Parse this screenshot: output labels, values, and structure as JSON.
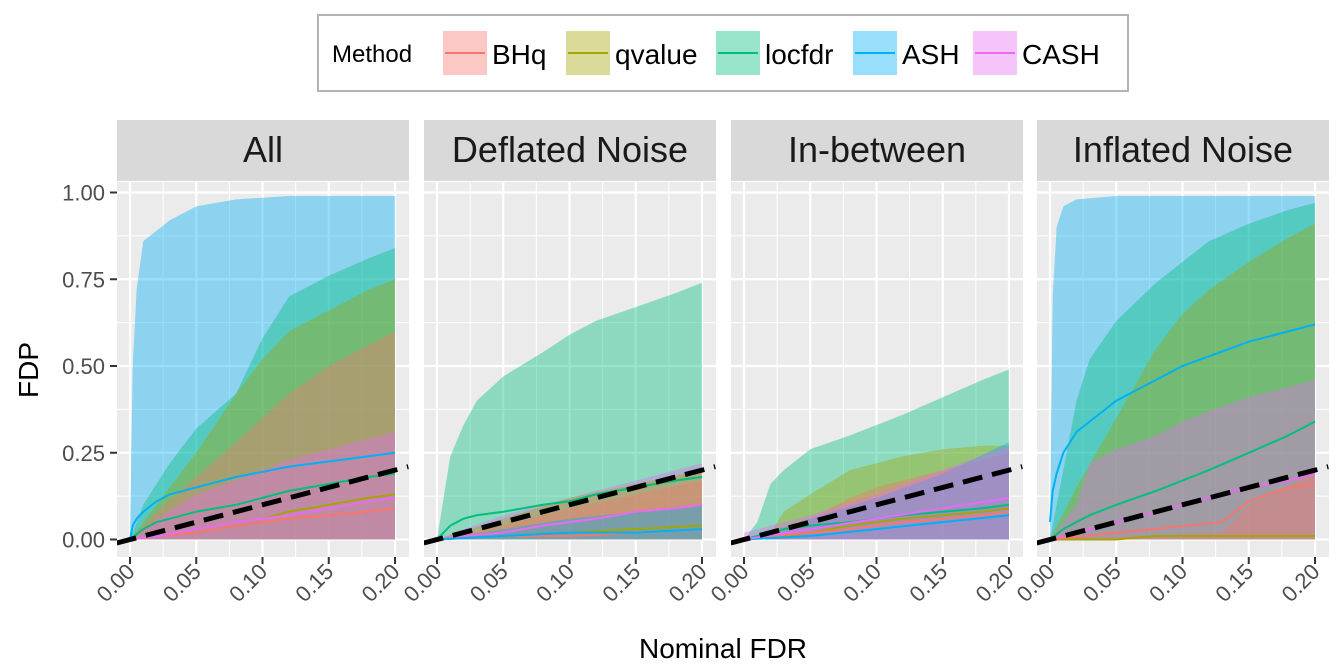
{
  "chart_data": {
    "type": "area",
    "xlabel": "Nominal FDR",
    "ylabel": "FDP",
    "xlim": [
      0,
      0.2
    ],
    "ylim": [
      0,
      1
    ],
    "x_ticks": [
      "0.00",
      "0.05",
      "0.10",
      "0.15",
      "0.20"
    ],
    "y_ticks": [
      "0.00",
      "0.25",
      "0.50",
      "0.75",
      "1.00"
    ],
    "grid": true,
    "legend": {
      "title": "Method",
      "placement": "top",
      "items": [
        {
          "name": "BHq",
          "color": "#F8766D"
        },
        {
          "name": "qvalue",
          "color": "#A3A500"
        },
        {
          "name": "locfdr",
          "color": "#00BF7D"
        },
        {
          "name": "ASH",
          "color": "#00B0F6"
        },
        {
          "name": "CASH",
          "color": "#E76BF3"
        }
      ]
    },
    "reference_line": {
      "style": "dashed",
      "color": "#000000",
      "slope": 1
    },
    "panels": [
      {
        "title": "All",
        "series": [
          {
            "name": "ASH",
            "x": [
              0,
              0.002,
              0.005,
              0.01,
              0.02,
              0.03,
              0.05,
              0.08,
              0.12,
              0.16,
              0.2
            ],
            "lower": [
              0,
              0,
              0,
              0,
              0,
              0,
              0,
              0,
              0,
              0,
              0
            ],
            "upper": [
              0.02,
              0.5,
              0.72,
              0.86,
              0.89,
              0.92,
              0.96,
              0.98,
              0.99,
              0.99,
              0.99
            ],
            "median": [
              0,
              0.04,
              0.06,
              0.08,
              0.11,
              0.13,
              0.15,
              0.18,
              0.21,
              0.23,
              0.25
            ]
          },
          {
            "name": "locfdr",
            "x": [
              0,
              0.01,
              0.02,
              0.03,
              0.05,
              0.08,
              0.1,
              0.12,
              0.15,
              0.18,
              0.2
            ],
            "lower": [
              0,
              0,
              0,
              0,
              0,
              0,
              0,
              0,
              0,
              0,
              0
            ],
            "upper": [
              0,
              0.1,
              0.16,
              0.22,
              0.32,
              0.42,
              0.58,
              0.7,
              0.76,
              0.81,
              0.84
            ],
            "median": [
              0,
              0.03,
              0.05,
              0.06,
              0.08,
              0.1,
              0.12,
              0.14,
              0.16,
              0.18,
              0.19
            ]
          },
          {
            "name": "qvalue",
            "x": [
              0,
              0.02,
              0.05,
              0.08,
              0.1,
              0.12,
              0.15,
              0.18,
              0.2
            ],
            "lower": [
              0,
              0,
              0,
              0,
              0,
              0,
              0,
              0,
              0
            ],
            "upper": [
              0,
              0.1,
              0.25,
              0.42,
              0.52,
              0.6,
              0.66,
              0.72,
              0.75
            ],
            "median": [
              0,
              0.01,
              0.03,
              0.05,
              0.06,
              0.08,
              0.1,
              0.12,
              0.13
            ]
          },
          {
            "name": "BHq",
            "x": [
              0,
              0.02,
              0.05,
              0.08,
              0.1,
              0.12,
              0.15,
              0.18,
              0.2
            ],
            "lower": [
              0,
              0,
              0,
              0,
              0,
              0,
              0,
              0,
              0
            ],
            "upper": [
              0,
              0.08,
              0.18,
              0.28,
              0.35,
              0.42,
              0.5,
              0.56,
              0.6
            ],
            "median": [
              0,
              0.01,
              0.02,
              0.04,
              0.05,
              0.06,
              0.07,
              0.08,
              0.09
            ]
          },
          {
            "name": "CASH",
            "x": [
              0,
              0.02,
              0.05,
              0.08,
              0.1,
              0.12,
              0.15,
              0.18,
              0.2
            ],
            "lower": [
              0,
              0,
              0,
              0,
              0,
              0,
              0,
              0,
              0
            ],
            "upper": [
              0,
              0.06,
              0.13,
              0.17,
              0.2,
              0.23,
              0.26,
              0.29,
              0.31
            ],
            "median": [
              0,
              0.01,
              0.03,
              0.05,
              0.06,
              0.07,
              0.09,
              0.11,
              0.12
            ]
          }
        ]
      },
      {
        "title": "Deflated Noise",
        "series": [
          {
            "name": "locfdr",
            "x": [
              0,
              0.005,
              0.01,
              0.02,
              0.03,
              0.05,
              0.08,
              0.1,
              0.12,
              0.15,
              0.18,
              0.2
            ],
            "lower": [
              0,
              0,
              0,
              0,
              0,
              0,
              0,
              0,
              0,
              0,
              0,
              0
            ],
            "upper": [
              0,
              0.12,
              0.24,
              0.33,
              0.4,
              0.47,
              0.54,
              0.59,
              0.63,
              0.67,
              0.71,
              0.74
            ],
            "median": [
              0,
              0.02,
              0.04,
              0.06,
              0.07,
              0.08,
              0.1,
              0.11,
              0.13,
              0.15,
              0.17,
              0.18
            ]
          },
          {
            "name": "CASH",
            "x": [
              0,
              0.02,
              0.05,
              0.08,
              0.1,
              0.12,
              0.15,
              0.18,
              0.2
            ],
            "lower": [
              0,
              0,
              0,
              0,
              0,
              0,
              0,
              0,
              0
            ],
            "upper": [
              0,
              0.03,
              0.07,
              0.1,
              0.12,
              0.14,
              0.17,
              0.2,
              0.22
            ],
            "median": [
              0,
              0.01,
              0.02,
              0.04,
              0.05,
              0.06,
              0.08,
              0.09,
              0.1
            ]
          },
          {
            "name": "qvalue",
            "x": [
              0,
              0.05,
              0.1,
              0.15,
              0.2
            ],
            "lower": [
              0,
              0,
              0,
              0,
              0
            ],
            "upper": [
              0,
              0.06,
              0.12,
              0.16,
              0.2
            ],
            "median": [
              0,
              0.01,
              0.02,
              0.03,
              0.04
            ]
          },
          {
            "name": "BHq",
            "x": [
              0,
              0.05,
              0.1,
              0.15,
              0.2
            ],
            "lower": [
              0,
              0,
              0,
              0,
              0
            ],
            "upper": [
              0,
              0.04,
              0.09,
              0.13,
              0.17
            ],
            "median": [
              0,
              0.01,
              0.01,
              0.02,
              0.03
            ]
          },
          {
            "name": "ASH",
            "x": [
              0,
              0.05,
              0.1,
              0.15,
              0.2
            ],
            "lower": [
              0,
              0,
              0,
              0,
              0
            ],
            "upper": [
              0,
              0.03,
              0.06,
              0.08,
              0.1
            ],
            "median": [
              0,
              0.01,
              0.02,
              0.02,
              0.03
            ]
          }
        ]
      },
      {
        "title": "In-between",
        "series": [
          {
            "name": "locfdr",
            "x": [
              0,
              0.01,
              0.02,
              0.03,
              0.05,
              0.08,
              0.1,
              0.12,
              0.15,
              0.18,
              0.2
            ],
            "lower": [
              0,
              0,
              0,
              0,
              0,
              0,
              0,
              0,
              0,
              0,
              0
            ],
            "upper": [
              0,
              0.05,
              0.16,
              0.2,
              0.26,
              0.3,
              0.33,
              0.36,
              0.41,
              0.46,
              0.49
            ],
            "median": [
              0,
              0.01,
              0.02,
              0.03,
              0.04,
              0.05,
              0.06,
              0.07,
              0.08,
              0.09,
              0.1
            ]
          },
          {
            "name": "qvalue",
            "x": [
              0,
              0.02,
              0.03,
              0.05,
              0.08,
              0.1,
              0.12,
              0.15,
              0.18,
              0.2
            ],
            "lower": [
              0,
              0,
              0,
              0,
              0,
              0,
              0,
              0,
              0,
              0
            ],
            "upper": [
              0,
              0.02,
              0.08,
              0.13,
              0.2,
              0.22,
              0.24,
              0.26,
              0.27,
              0.27
            ],
            "median": [
              0,
              0.01,
              0.01,
              0.02,
              0.04,
              0.05,
              0.06,
              0.07,
              0.08,
              0.09
            ]
          },
          {
            "name": "BHq",
            "x": [
              0,
              0.02,
              0.05,
              0.08,
              0.1,
              0.12,
              0.15,
              0.18,
              0.2
            ],
            "lower": [
              0,
              0,
              0,
              0,
              0,
              0,
              0,
              0,
              0
            ],
            "upper": [
              0,
              0.02,
              0.06,
              0.12,
              0.15,
              0.17,
              0.2,
              0.23,
              0.25
            ],
            "median": [
              0,
              0.01,
              0.02,
              0.03,
              0.04,
              0.05,
              0.06,
              0.07,
              0.08
            ]
          },
          {
            "name": "ASH",
            "x": [
              0,
              0.05,
              0.1,
              0.15,
              0.2
            ],
            "lower": [
              0,
              0,
              0,
              0,
              0
            ],
            "upper": [
              0,
              0.06,
              0.12,
              0.19,
              0.28
            ],
            "median": [
              0,
              0.01,
              0.03,
              0.05,
              0.07
            ]
          },
          {
            "name": "CASH",
            "x": [
              0,
              0.05,
              0.1,
              0.15,
              0.2
            ],
            "lower": [
              0,
              0,
              0,
              0,
              0
            ],
            "upper": [
              0.02,
              0.07,
              0.13,
              0.2,
              0.27
            ],
            "median": [
              0,
              0.03,
              0.06,
              0.09,
              0.12
            ]
          }
        ]
      },
      {
        "title": "Inflated Noise",
        "series": [
          {
            "name": "ASH",
            "x": [
              0,
              0.002,
              0.005,
              0.01,
              0.02,
              0.05,
              0.1,
              0.15,
              0.2
            ],
            "lower": [
              0,
              0,
              0,
              0,
              0,
              0,
              0,
              0,
              0
            ],
            "upper": [
              0.05,
              0.7,
              0.9,
              0.96,
              0.98,
              0.99,
              0.99,
              0.99,
              0.99
            ],
            "median": [
              0.05,
              0.14,
              0.19,
              0.25,
              0.31,
              0.4,
              0.5,
              0.57,
              0.62
            ]
          },
          {
            "name": "locfdr",
            "x": [
              0,
              0.01,
              0.02,
              0.03,
              0.05,
              0.08,
              0.1,
              0.12,
              0.15,
              0.18,
              0.2
            ],
            "lower": [
              0,
              0,
              0,
              0,
              0,
              0,
              0,
              0,
              0,
              0,
              0
            ],
            "upper": [
              0,
              0.2,
              0.4,
              0.52,
              0.63,
              0.74,
              0.8,
              0.86,
              0.91,
              0.95,
              0.97
            ],
            "median": [
              0,
              0.03,
              0.05,
              0.07,
              0.1,
              0.14,
              0.17,
              0.2,
              0.25,
              0.3,
              0.34
            ]
          },
          {
            "name": "qvalue",
            "x": [
              0,
              0.02,
              0.05,
              0.08,
              0.1,
              0.12,
              0.15,
              0.18,
              0.2
            ],
            "lower": [
              0,
              0,
              0,
              0,
              0,
              0,
              0,
              0,
              0
            ],
            "upper": [
              0,
              0.15,
              0.35,
              0.55,
              0.65,
              0.72,
              0.8,
              0.87,
              0.91
            ],
            "median": [
              0,
              0,
              0,
              0.01,
              0.01,
              0.01,
              0.01,
              0.01,
              0.01
            ]
          },
          {
            "name": "CASH",
            "x": [
              0,
              0.02,
              0.03,
              0.05,
              0.08,
              0.1,
              0.12,
              0.15,
              0.18,
              0.2
            ],
            "lower": [
              0,
              0,
              0,
              0,
              0,
              0,
              0,
              0,
              0,
              0
            ],
            "upper": [
              0,
              0.1,
              0.22,
              0.26,
              0.3,
              0.34,
              0.37,
              0.41,
              0.44,
              0.46
            ],
            "median": [
              0,
              0.02,
              0.03,
              0.05,
              0.08,
              0.1,
              0.12,
              0.15,
              0.17,
              0.19
            ]
          },
          {
            "name": "BHq",
            "x": [
              0,
              0.13,
              0.15,
              0.18,
              0.2
            ],
            "lower": [
              0,
              0,
              0,
              0,
              0
            ],
            "upper": [
              0,
              0.02,
              0.1,
              0.15,
              0.2
            ],
            "median": [
              0,
              0.05,
              0.11,
              0.15,
              0.16
            ]
          }
        ]
      }
    ]
  }
}
